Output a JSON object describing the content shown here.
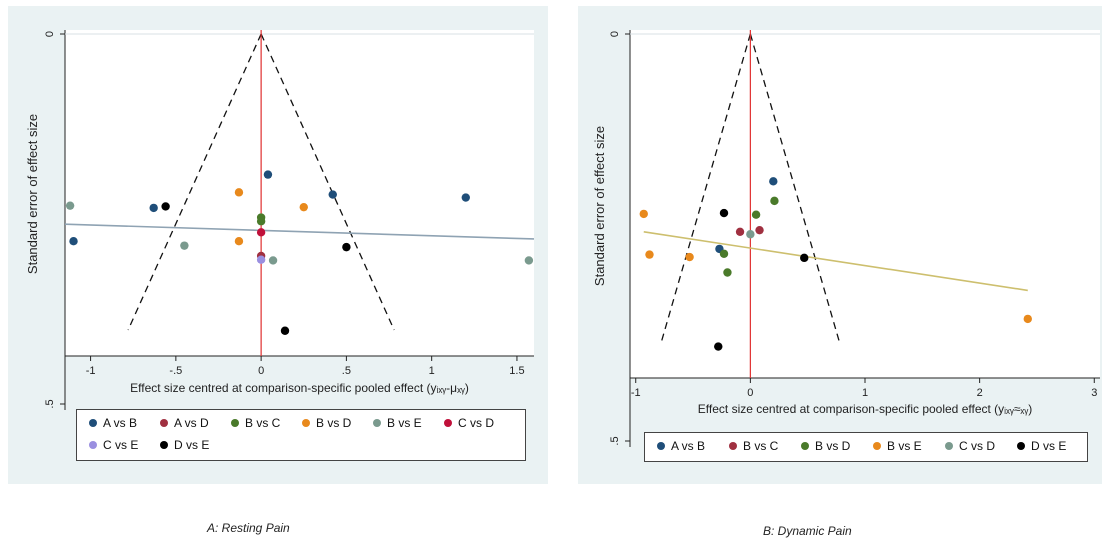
{
  "chart_data": [
    {
      "type": "scatter",
      "xlabel": "Effect size centred at comparison-specific pooled effect (yᵢₓᵧ-μₓᵧ)",
      "ylabel": "Standard error of effect size",
      "x_ticks": [
        "-1",
        "-.5",
        "0",
        ".5",
        "1",
        "1.5"
      ],
      "x_tick_values": [
        -1,
        -0.5,
        0,
        0.5,
        1,
        1.5
      ],
      "y_ticks": [
        "0",
        ".5"
      ],
      "y_tick_values": [
        0,
        0.5
      ],
      "xlim": [
        -1.15,
        1.6
      ],
      "ylim": [
        0,
        0.5
      ],
      "y_reversed": true,
      "funnel": {
        "apex": [
          0,
          0
        ],
        "base_y": 0.4,
        "half_width": 0.78
      },
      "reference_line_x": 0,
      "fit_line": {
        "x": [
          -1.15,
          1.6
        ],
        "y": [
          0.257,
          0.277
        ],
        "color": "#8fa3b3"
      },
      "legend": {
        "placement": "bottom",
        "items": [
          "A vs B",
          "A vs D",
          "B vs C",
          "B vs D",
          "B vs E",
          "C vs D",
          "C vs E",
          "D vs E"
        ]
      },
      "series": [
        {
          "name": "A vs B",
          "color": "#1f4e79",
          "points": [
            [
              -1.1,
              0.28
            ],
            [
              -0.63,
              0.235
            ],
            [
              0.04,
              0.19
            ],
            [
              0.42,
              0.217
            ],
            [
              1.2,
              0.221
            ]
          ]
        },
        {
          "name": "A vs D",
          "color": "#a03040",
          "points": [
            [
              0.0,
              0.3
            ]
          ]
        },
        {
          "name": "B vs C",
          "color": "#4a7a2a",
          "points": [
            [
              0.0,
              0.248
            ],
            [
              0.0,
              0.253
            ]
          ]
        },
        {
          "name": "B vs D",
          "color": "#e8891c",
          "points": [
            [
              -0.13,
              0.214
            ],
            [
              0.25,
              0.234
            ],
            [
              -0.13,
              0.28
            ]
          ]
        },
        {
          "name": "B vs E",
          "color": "#7a9a8e",
          "points": [
            [
              -1.12,
              0.232
            ],
            [
              -0.45,
              0.286
            ],
            [
              0.07,
              0.306
            ],
            [
              1.57,
              0.306
            ]
          ]
        },
        {
          "name": "C vs D",
          "color": "#c0103a",
          "points": [
            [
              0.0,
              0.268
            ]
          ]
        },
        {
          "name": "C vs E",
          "color": "#9a8fe0",
          "points": [
            [
              0.0,
              0.305
            ]
          ]
        },
        {
          "name": "D vs E",
          "color": "#000000",
          "points": [
            [
              -0.56,
              0.233
            ],
            [
              0.5,
              0.288
            ],
            [
              0.14,
              0.401
            ]
          ]
        }
      ]
    },
    {
      "type": "scatter",
      "xlabel": "Effect size centred at comparison-specific pooled effect (yᵢₓᵧ≈ₓᵧ)",
      "ylabel": "Standard error of effect size",
      "x_ticks": [
        "-1",
        "0",
        "1",
        "2",
        "3"
      ],
      "x_tick_values": [
        -1,
        0,
        1,
        2,
        3
      ],
      "y_ticks": [
        "0",
        ".5"
      ],
      "y_tick_values": [
        0,
        0.5
      ],
      "xlim": [
        -1.05,
        3.05
      ],
      "ylim": [
        0,
        0.5
      ],
      "y_reversed": true,
      "funnel": {
        "apex": [
          0,
          0
        ],
        "base_y": 0.38,
        "half_width": 0.78
      },
      "reference_line_x": 0,
      "fit_line": {
        "x": [
          -0.93,
          2.42
        ],
        "y": [
          0.243,
          0.315
        ],
        "color": "#cdbf6e"
      },
      "legend": {
        "placement": "bottom",
        "items": [
          "A vs B",
          "B vs C",
          "B vs D",
          "B vs E",
          "C vs D",
          "D vs E"
        ]
      },
      "series": [
        {
          "name": "A vs B",
          "color": "#1f4e79",
          "points": [
            [
              0.2,
              0.181
            ],
            [
              -0.27,
              0.264
            ]
          ]
        },
        {
          "name": "B vs C",
          "color": "#a03040",
          "points": [
            [
              -0.09,
              0.243
            ],
            [
              0.08,
              0.241
            ]
          ]
        },
        {
          "name": "B vs D",
          "color": "#4a7a2a",
          "points": [
            [
              0.21,
              0.205
            ],
            [
              0.05,
              0.222
            ],
            [
              -0.23,
              0.27
            ],
            [
              -0.2,
              0.293
            ]
          ]
        },
        {
          "name": "B vs E",
          "color": "#e8891c",
          "points": [
            [
              -0.93,
              0.221
            ],
            [
              -0.88,
              0.271
            ],
            [
              -0.53,
              0.274
            ],
            [
              2.42,
              0.35
            ]
          ]
        },
        {
          "name": "C vs D",
          "color": "#7a9a8e",
          "points": [
            [
              0.0,
              0.246
            ]
          ]
        },
        {
          "name": "D vs E",
          "color": "#000000",
          "points": [
            [
              -0.23,
              0.22
            ],
            [
              0.47,
              0.275
            ],
            [
              -0.28,
              0.384
            ]
          ]
        }
      ]
    }
  ],
  "captions": {
    "a": "A: Resting Pain",
    "b": "B: Dynamic Pain"
  }
}
